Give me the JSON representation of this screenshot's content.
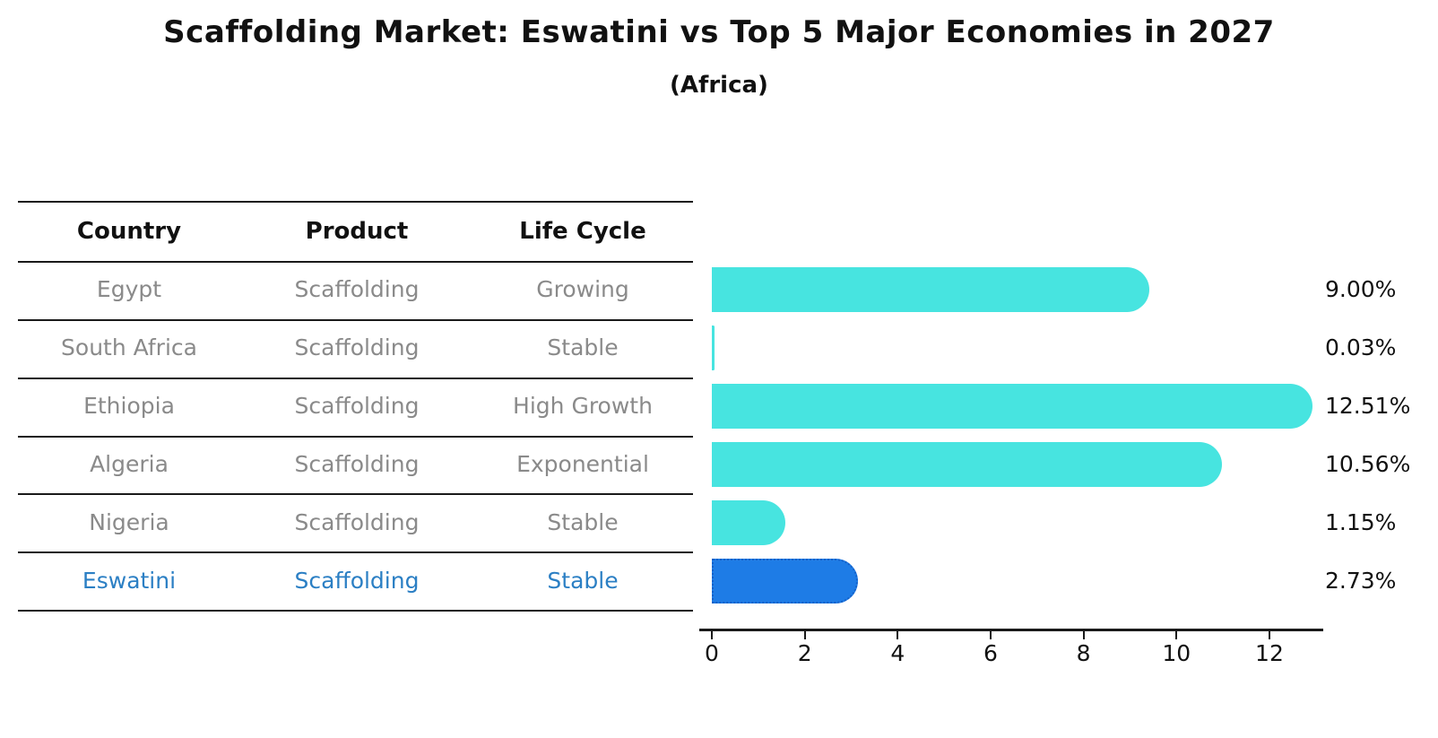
{
  "title": "Scaffolding Market: Eswatini vs Top 5 Major Economies in 2027",
  "subtitle": "(Africa)",
  "table": {
    "headers": [
      "Country",
      "Product",
      "Life Cycle"
    ],
    "rows": [
      {
        "country": "Egypt",
        "product": "Scaffolding",
        "life_cycle": "Growing",
        "highlight": false
      },
      {
        "country": "South Africa",
        "product": "Scaffolding",
        "life_cycle": "Stable",
        "highlight": false
      },
      {
        "country": "Ethiopia",
        "product": "Scaffolding",
        "life_cycle": "High Growth",
        "highlight": false
      },
      {
        "country": "Algeria",
        "product": "Scaffolding",
        "life_cycle": "Exponential",
        "highlight": false
      },
      {
        "country": "Nigeria",
        "product": "Scaffolding",
        "life_cycle": "Stable",
        "highlight": false
      },
      {
        "country": "Eswatini",
        "product": "Scaffolding",
        "life_cycle": "Stable",
        "highlight": true
      }
    ]
  },
  "chart_data": {
    "type": "bar",
    "orientation": "horizontal",
    "title": "Scaffolding Market: Eswatini vs Top 5 Major Economies in 2027 (Africa)",
    "categories": [
      "Egypt",
      "South Africa",
      "Ethiopia",
      "Algeria",
      "Nigeria",
      "Eswatini"
    ],
    "values": [
      9.0,
      0.03,
      12.51,
      10.56,
      1.15,
      2.73
    ],
    "value_labels": [
      "9.00%",
      "0.03%",
      "12.51%",
      "10.56%",
      "1.15%",
      "2.73%"
    ],
    "xticks": [
      0,
      2,
      4,
      6,
      8,
      10,
      12
    ],
    "xlim": [
      0,
      13.1
    ],
    "grid": false,
    "legend": false,
    "highlight_index": 5
  },
  "colors": {
    "bar_cyan": "#47E4E0",
    "bar_highlight_blue": "#1E7CE6",
    "bar_highlight_border": "#1460C8",
    "highlight_text": "#2B7FC4",
    "table_text_gray": "#8A8A8A",
    "heading_black": "#111111",
    "line_black": "#1a1a1a"
  }
}
